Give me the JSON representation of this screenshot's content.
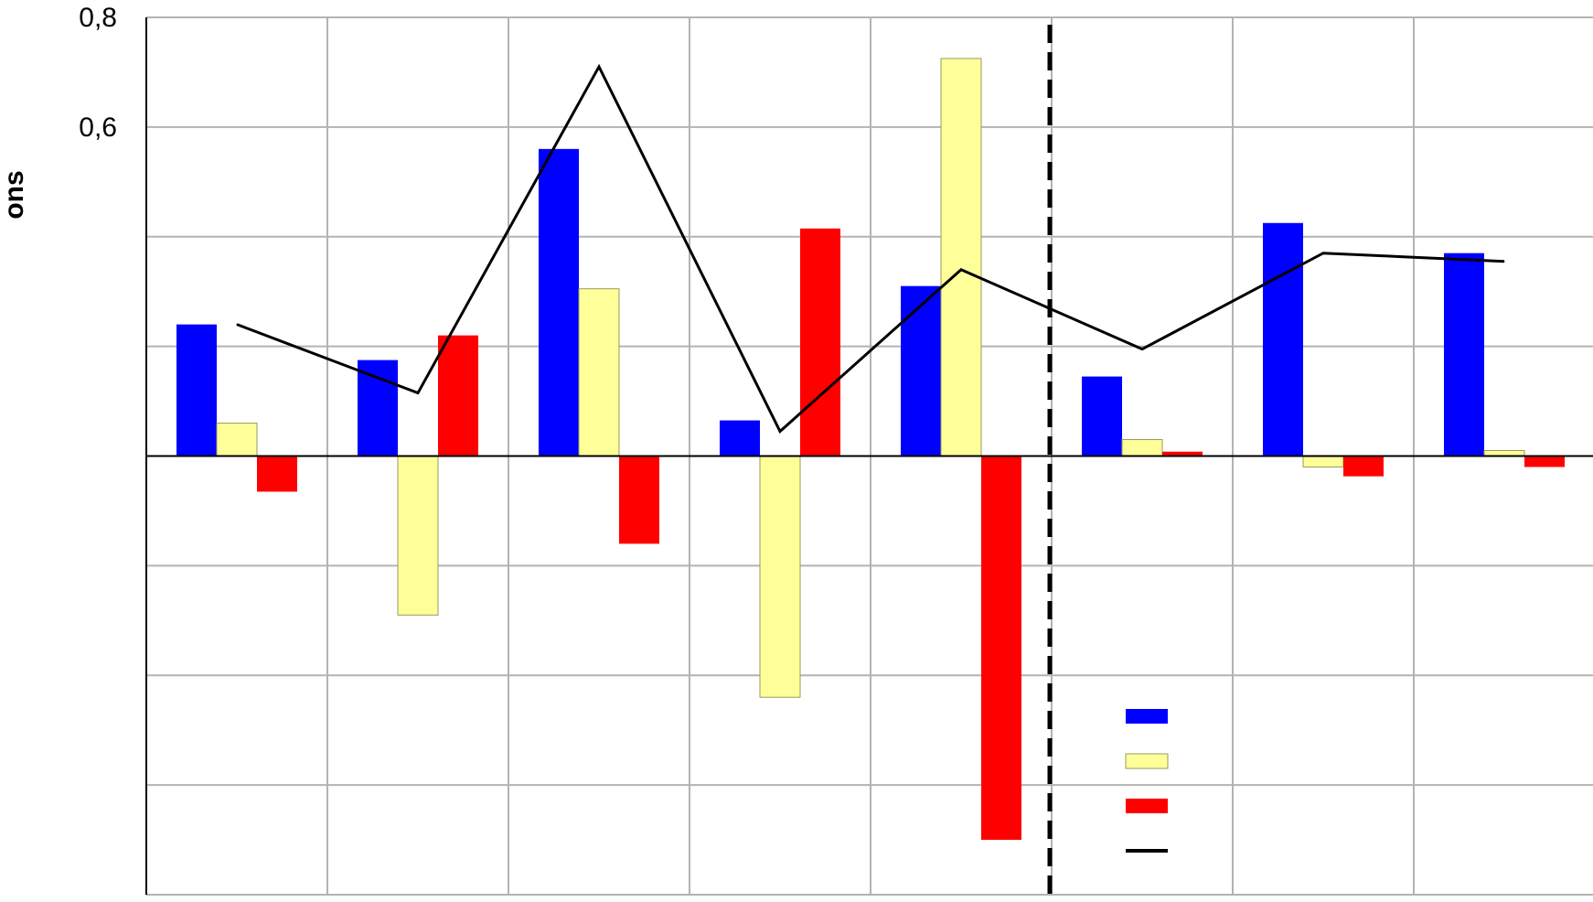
{
  "chart_data": {
    "type": "bar",
    "title": "",
    "xlabel": "",
    "ylabel": "ons",
    "ylim": [
      -0.8,
      0.8
    ],
    "y_ticks": [
      0.8,
      0.6
    ],
    "y_tick_labels": [
      "0,8",
      "0,6"
    ],
    "grid": true,
    "legend_position": "lower-right",
    "divider_after_group": 5,
    "group_count": 8,
    "series": [
      {
        "color": "#0000ff",
        "kind": "bar",
        "values": [
          0.24,
          0.175,
          0.56,
          0.065,
          0.31,
          0.145,
          0.425,
          0.37
        ]
      },
      {
        "color": "#ffff99",
        "kind": "bar",
        "values": [
          0.06,
          -0.29,
          0.305,
          -0.44,
          0.725,
          0.03,
          -0.02,
          0.01
        ]
      },
      {
        "color": "#ff0000",
        "kind": "bar",
        "values": [
          -0.065,
          0.22,
          -0.16,
          0.415,
          -0.7,
          0.008,
          -0.037,
          -0.02
        ]
      },
      {
        "color": "#000000",
        "kind": "line",
        "values": [
          0.24,
          0.115,
          0.71,
          0.045,
          0.34,
          0.195,
          0.37,
          0.355
        ]
      }
    ]
  }
}
